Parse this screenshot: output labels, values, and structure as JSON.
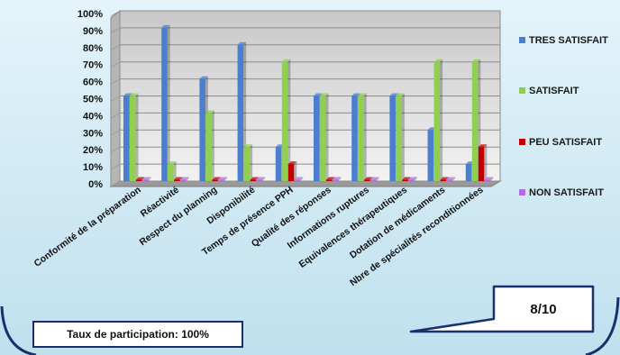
{
  "participation": "Taux de participation: 100%",
  "score": "8/10",
  "colors": {
    "tres_satisfait": "#4a7fd0",
    "satisfait": "#8fd14f",
    "peu_satisfait": "#c00000",
    "non_satisfait": "#b070e0",
    "background": "#d6ecf5",
    "frame": "#1b2f6b"
  },
  "chart_data": {
    "type": "bar",
    "categories": [
      "Conformité de la préparation",
      "Réactivité",
      "Respect du planning",
      "Disponibilité",
      "Temps de présence PPH",
      "Qualité des réponses",
      "Informations ruptures",
      "Equivalences thérapeutiques",
      "Dotation de médicaments",
      "Nbre de spécialités reconditionnées"
    ],
    "series": [
      {
        "name": "TRES SATISFAIT",
        "values": [
          50,
          90,
          60,
          80,
          20,
          50,
          50,
          50,
          30,
          10
        ]
      },
      {
        "name": "SATISFAIT",
        "values": [
          50,
          10,
          40,
          20,
          70,
          50,
          50,
          50,
          70,
          70
        ]
      },
      {
        "name": "PEU SATISFAIT",
        "values": [
          0,
          0,
          0,
          0,
          10,
          0,
          0,
          0,
          0,
          20
        ]
      },
      {
        "name": "NON SATISFAIT",
        "values": [
          0,
          0,
          0,
          0,
          0,
          0,
          0,
          0,
          0,
          0
        ]
      }
    ],
    "yticks": [
      "0%",
      "10%",
      "20%",
      "30%",
      "40%",
      "50%",
      "60%",
      "70%",
      "80%",
      "90%",
      "100%"
    ],
    "ylim": [
      0,
      100
    ],
    "grid": true,
    "legend_position": "right"
  }
}
